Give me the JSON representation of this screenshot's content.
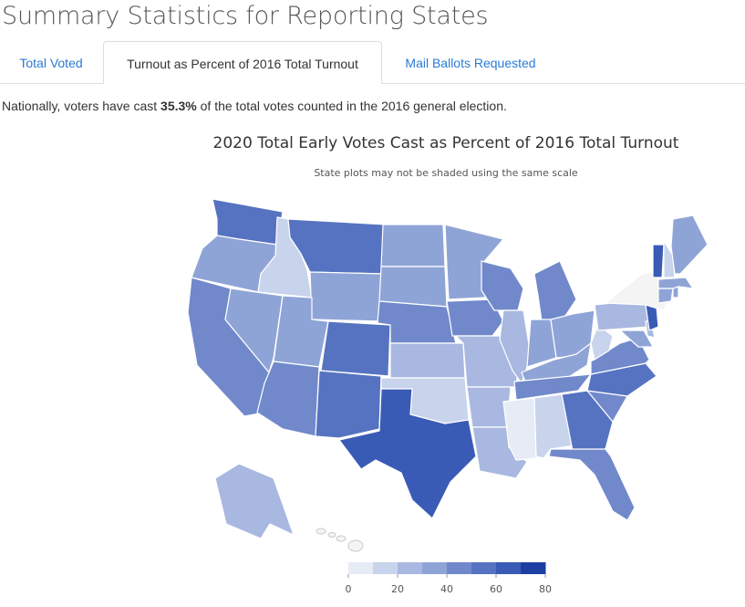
{
  "page_title": "Summary Statistics for Reporting States",
  "tabs": [
    {
      "label": "Total Voted",
      "active": false
    },
    {
      "label": "Turnout as Percent of 2016 Total Turnout",
      "active": true
    },
    {
      "label": "Mail Ballots Requested",
      "active": false
    }
  ],
  "summary": {
    "prefix": "Nationally, voters have cast ",
    "value": "35.3%",
    "suffix": " of the total votes counted in the 2016 general election."
  },
  "map": {
    "title": "2020 Total Early Votes Cast as Percent of 2016 Total Turnout",
    "subtitle": "State plots may not be shaded using the same scale",
    "color_scale": {
      "min": 0,
      "max": 80,
      "stops": [
        "#e6ebf6",
        "#c8d3ec",
        "#a8b8e0",
        "#8fa4d6",
        "#7189cb",
        "#5673c1",
        "#3a5bb5",
        "#1e3fa2"
      ],
      "ticks": [
        0,
        20,
        40,
        60,
        80
      ]
    },
    "no_data_color": "#f4f4f4",
    "state_values": {
      "WA": 52,
      "OR": 38,
      "CA": 42,
      "NV": 33,
      "ID": 16,
      "MT": 58,
      "WY": 30,
      "UT": 30,
      "AZ": 45,
      "CO": 52,
      "NM": 52,
      "ND": 32,
      "SD": 36,
      "NE": 46,
      "KS": 22,
      "OK": 12,
      "TX": 66,
      "MN": 35,
      "IA": 45,
      "MO": 24,
      "AR": 26,
      "LA": 24,
      "WI": 42,
      "IL": 26,
      "MI": 46,
      "IN": 32,
      "OH": 32,
      "KY": 30,
      "TN": 48,
      "MS": 7,
      "AL": 10,
      "GA": 58,
      "FL": 42,
      "SC": 40,
      "NC": 52,
      "VA": 46,
      "WV": 14,
      "PA": 20,
      "MD": 36,
      "DE": 26,
      "NJ": 66,
      "NY": null,
      "CT": 30,
      "RI": 30,
      "MA": 38,
      "VT": 66,
      "NH": 16,
      "ME": 38,
      "AK": 25,
      "HI": null,
      "DC": 40
    }
  }
}
